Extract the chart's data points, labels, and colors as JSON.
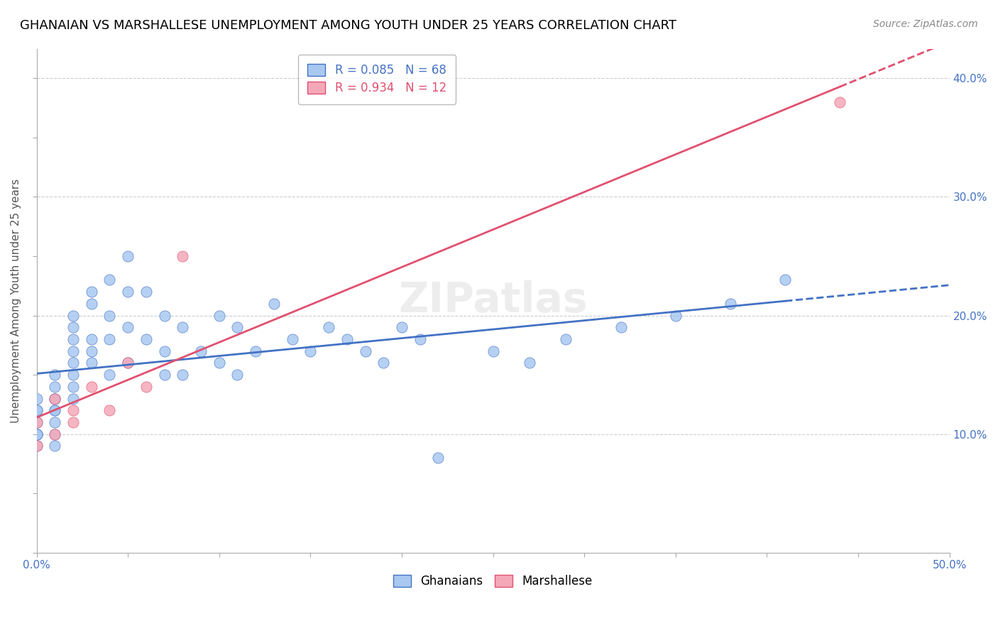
{
  "title": "GHANAIAN VS MARSHALLESE UNEMPLOYMENT AMONG YOUTH UNDER 25 YEARS CORRELATION CHART",
  "source": "Source: ZipAtlas.com",
  "ylabel": "Unemployment Among Youth under 25 years",
  "xlabel": "",
  "xlim": [
    0.0,
    0.5
  ],
  "ylim": [
    0.0,
    0.425
  ],
  "ghanaian_color": "#a8c8f0",
  "marshallese_color": "#f5a8b8",
  "ghanaian_line_color": "#4472c4",
  "marshallese_line_color": "#e05070",
  "R_ghanaian": 0.085,
  "N_ghanaian": 68,
  "R_marshallese": 0.934,
  "N_marshallese": 12,
  "watermark": "ZIPatlas",
  "ghanaian_x": [
    0.0,
    0.0,
    0.0,
    0.0,
    0.0,
    0.0,
    0.0,
    0.0,
    0.01,
    0.01,
    0.01,
    0.01,
    0.01,
    0.01,
    0.01,
    0.01,
    0.01,
    0.02,
    0.02,
    0.02,
    0.02,
    0.02,
    0.02,
    0.02,
    0.02,
    0.03,
    0.03,
    0.03,
    0.03,
    0.03,
    0.04,
    0.04,
    0.04,
    0.04,
    0.05,
    0.05,
    0.05,
    0.05,
    0.06,
    0.06,
    0.07,
    0.07,
    0.07,
    0.08,
    0.08,
    0.09,
    0.1,
    0.1,
    0.11,
    0.11,
    0.12,
    0.13,
    0.14,
    0.15,
    0.16,
    0.17,
    0.18,
    0.19,
    0.2,
    0.21,
    0.22,
    0.25,
    0.27,
    0.29,
    0.32,
    0.35,
    0.38,
    0.41
  ],
  "ghanaian_y": [
    0.13,
    0.12,
    0.12,
    0.11,
    0.1,
    0.1,
    0.1,
    0.09,
    0.15,
    0.14,
    0.13,
    0.13,
    0.12,
    0.12,
    0.11,
    0.1,
    0.09,
    0.2,
    0.19,
    0.18,
    0.17,
    0.16,
    0.15,
    0.14,
    0.13,
    0.22,
    0.21,
    0.18,
    0.17,
    0.16,
    0.23,
    0.2,
    0.18,
    0.15,
    0.25,
    0.22,
    0.19,
    0.16,
    0.22,
    0.18,
    0.2,
    0.17,
    0.15,
    0.19,
    0.15,
    0.17,
    0.2,
    0.16,
    0.19,
    0.15,
    0.17,
    0.21,
    0.18,
    0.17,
    0.19,
    0.18,
    0.17,
    0.16,
    0.19,
    0.18,
    0.08,
    0.17,
    0.16,
    0.18,
    0.19,
    0.2,
    0.21,
    0.23
  ],
  "marshallese_x": [
    0.0,
    0.0,
    0.01,
    0.01,
    0.02,
    0.02,
    0.03,
    0.04,
    0.05,
    0.06,
    0.08,
    0.44
  ],
  "marshallese_y": [
    0.11,
    0.09,
    0.13,
    0.1,
    0.12,
    0.11,
    0.14,
    0.12,
    0.16,
    0.14,
    0.25,
    0.38
  ]
}
